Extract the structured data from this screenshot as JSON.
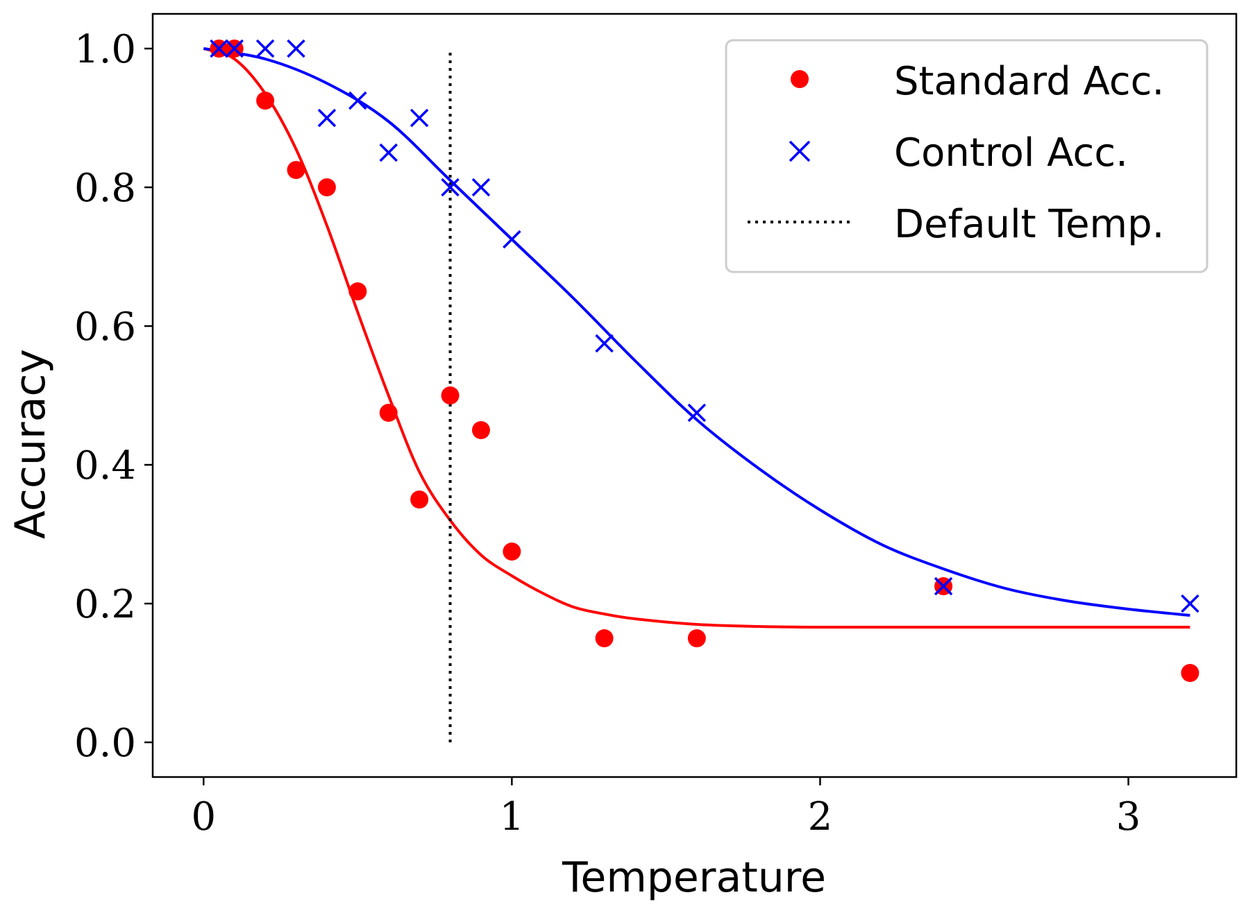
{
  "chart_data": {
    "type": "scatter",
    "xlabel": "Temperature",
    "ylabel": "Accuracy",
    "xlim": [
      -0.165,
      3.35
    ],
    "ylim": [
      -0.05,
      1.05
    ],
    "xticks": [
      0,
      1,
      2,
      3
    ],
    "yticks": [
      0.0,
      0.2,
      0.4,
      0.6,
      0.8,
      1.0
    ],
    "xtick_labels": [
      "0",
      "1",
      "2",
      "3"
    ],
    "ytick_labels": [
      "0.0",
      "0.2",
      "0.4",
      "0.6",
      "0.8",
      "1.0"
    ],
    "grid": false,
    "legend_position": "upper right",
    "series": [
      {
        "name": "Standard Acc.",
        "marker": "circle",
        "color": "#ff0000",
        "x": [
          0.05,
          0.1,
          0.2,
          0.3,
          0.4,
          0.5,
          0.6,
          0.7,
          0.8,
          0.9,
          1.0,
          1.3,
          1.6,
          2.4,
          3.2
        ],
        "y": [
          1.0,
          1.0,
          0.925,
          0.825,
          0.8,
          0.65,
          0.475,
          0.35,
          0.5,
          0.45,
          0.275,
          0.15,
          0.15,
          0.225,
          0.1
        ]
      },
      {
        "name": "Control Acc.",
        "marker": "x",
        "color": "#0000ff",
        "x": [
          0.05,
          0.1,
          0.2,
          0.3,
          0.4,
          0.5,
          0.6,
          0.7,
          0.8,
          0.9,
          1.0,
          1.3,
          1.6,
          2.4,
          3.2
        ],
        "y": [
          1.0,
          1.0,
          1.0,
          1.0,
          0.9,
          0.925,
          0.85,
          0.9,
          0.8,
          0.8,
          0.725,
          0.575,
          0.475,
          0.225,
          0.2
        ]
      }
    ],
    "fit_curves": [
      {
        "color": "#ff0000",
        "x": [
          0.0,
          0.1,
          0.2,
          0.3,
          0.4,
          0.5,
          0.6,
          0.7,
          0.8,
          0.9,
          1.0,
          1.1,
          1.2,
          1.3,
          1.4,
          1.6,
          1.8,
          2.0,
          2.4,
          2.8,
          3.2
        ],
        "y": [
          1.0,
          0.985,
          0.935,
          0.855,
          0.745,
          0.62,
          0.5,
          0.39,
          0.32,
          0.27,
          0.24,
          0.215,
          0.195,
          0.185,
          0.178,
          0.17,
          0.167,
          0.166,
          0.166,
          0.166,
          0.166
        ]
      },
      {
        "color": "#0000ff",
        "x": [
          0.0,
          0.2,
          0.4,
          0.6,
          0.8,
          1.0,
          1.2,
          1.4,
          1.6,
          1.8,
          2.0,
          2.2,
          2.4,
          2.6,
          2.8,
          3.0,
          3.2
        ],
        "y": [
          1.0,
          0.985,
          0.95,
          0.895,
          0.81,
          0.725,
          0.64,
          0.55,
          0.465,
          0.395,
          0.335,
          0.285,
          0.25,
          0.222,
          0.204,
          0.192,
          0.183
        ]
      }
    ],
    "vlines": [
      {
        "name": "Default Temp.",
        "x": 0.8,
        "y0": 0.0,
        "y1": 1.0,
        "style": "dotted",
        "color": "#000000"
      }
    ],
    "legend": [
      "Standard Acc.",
      "Control Acc.",
      "Default Temp."
    ]
  }
}
